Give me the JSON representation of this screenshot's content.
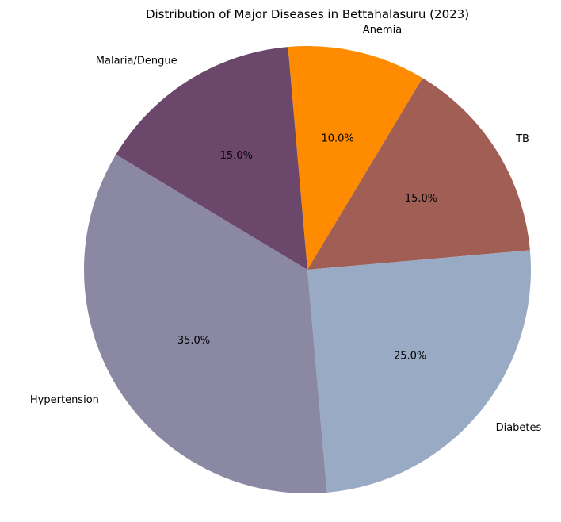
{
  "chart_data": {
    "type": "pie",
    "title": "Distribution of Major Diseases in Bettahalasuru (2023)",
    "start_angle_deg": 95,
    "direction": "clockwise",
    "slices": [
      {
        "label": "Anemia",
        "value": 10,
        "pct_label": "10.0%",
        "color": "#ff8c00"
      },
      {
        "label": "TB",
        "value": 15,
        "pct_label": "15.0%",
        "color": "#a05e55"
      },
      {
        "label": "Diabetes",
        "value": 25,
        "pct_label": "25.0%",
        "color": "#99abc4"
      },
      {
        "label": "Hypertension",
        "value": 35,
        "pct_label": "35.0%",
        "color": "#8a88a3"
      },
      {
        "label": "Malaria/Dengue",
        "value": 15,
        "pct_label": "15.0%",
        "color": "#6b476b"
      }
    ]
  }
}
